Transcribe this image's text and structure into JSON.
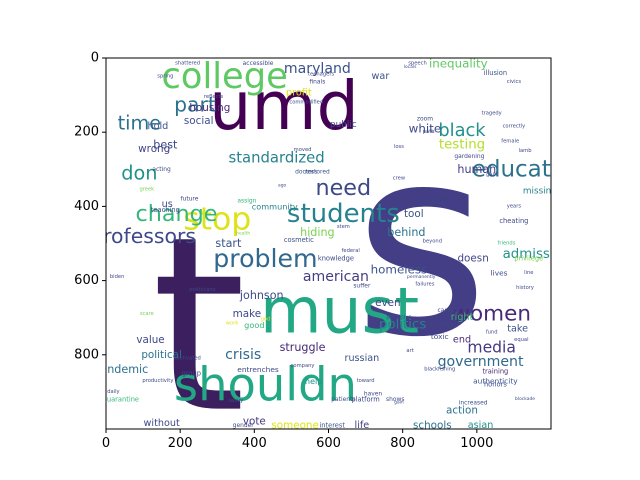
{
  "chart_data": {
    "type": "wordcloud",
    "xlim": [
      0,
      1200
    ],
    "ylim": [
      1000,
      0
    ],
    "x_ticks": [
      0,
      200,
      400,
      600,
      800,
      1000
    ],
    "y_ticks": [
      0,
      200,
      400,
      600,
      800
    ],
    "words": [
      {
        "text": "s",
        "x": 850,
        "y": 500,
        "size": 700,
        "color": "#433e85"
      },
      {
        "text": "t",
        "x": 250,
        "y": 720,
        "size": 650,
        "color": "#3b1f5e"
      },
      {
        "text": "umd",
        "x": 480,
        "y": 130,
        "size": 180,
        "color": "#440154"
      },
      {
        "text": "must",
        "x": 630,
        "y": 680,
        "size": 170,
        "color": "#22a884"
      },
      {
        "text": "shouldn",
        "x": 430,
        "y": 880,
        "size": 125,
        "color": "#22a884"
      },
      {
        "text": "college",
        "x": 320,
        "y": 50,
        "size": 95,
        "color": "#5ec962"
      },
      {
        "text": "stop",
        "x": 300,
        "y": 435,
        "size": 85,
        "color": "#dde318"
      },
      {
        "text": "students",
        "x": 640,
        "y": 420,
        "size": 70,
        "color": "#26828e"
      },
      {
        "text": "problem",
        "x": 430,
        "y": 540,
        "size": 68,
        "color": "#31688e"
      },
      {
        "text": "need",
        "x": 640,
        "y": 350,
        "size": 60,
        "color": "#3e4989"
      },
      {
        "text": "part",
        "x": 240,
        "y": 125,
        "size": 55,
        "color": "#2c728e"
      },
      {
        "text": "women",
        "x": 1040,
        "y": 690,
        "size": 58,
        "color": "#482878"
      },
      {
        "text": "education",
        "x": 1140,
        "y": 300,
        "size": 62,
        "color": "#2c728e"
      },
      {
        "text": "change",
        "x": 190,
        "y": 420,
        "size": 60,
        "color": "#35b779"
      },
      {
        "text": "professors",
        "x": 100,
        "y": 480,
        "size": 55,
        "color": "#3e4989"
      },
      {
        "text": "black",
        "x": 960,
        "y": 195,
        "size": 48,
        "color": "#21918c"
      },
      {
        "text": "time",
        "x": 90,
        "y": 175,
        "size": 52,
        "color": "#2c728e"
      },
      {
        "text": "don",
        "x": 90,
        "y": 310,
        "size": 52,
        "color": "#21918c"
      },
      {
        "text": "standardized",
        "x": 460,
        "y": 270,
        "size": 40,
        "color": "#26828e"
      },
      {
        "text": "media",
        "x": 1040,
        "y": 780,
        "size": 42,
        "color": "#443983"
      },
      {
        "text": "government",
        "x": 1010,
        "y": 820,
        "size": 38,
        "color": "#31688e"
      },
      {
        "text": "maryland",
        "x": 570,
        "y": 30,
        "size": 38,
        "color": "#3b528b"
      },
      {
        "text": "crisis",
        "x": 370,
        "y": 800,
        "size": 38,
        "color": "#31688e"
      },
      {
        "text": "american",
        "x": 620,
        "y": 590,
        "size": 38,
        "color": "#433e85"
      },
      {
        "text": "testing",
        "x": 960,
        "y": 235,
        "size": 36,
        "color": "#b5de2b"
      },
      {
        "text": "admissions",
        "x": 1170,
        "y": 530,
        "size": 36,
        "color": "#21918c"
      },
      {
        "text": "politics",
        "x": 800,
        "y": 720,
        "size": 36,
        "color": "#26828e"
      },
      {
        "text": "homeless",
        "x": 790,
        "y": 570,
        "size": 32,
        "color": "#3b528b"
      },
      {
        "text": "inequality",
        "x": 950,
        "y": 15,
        "size": 32,
        "color": "#5ec962"
      },
      {
        "text": "white",
        "x": 860,
        "y": 190,
        "size": 32,
        "color": "#3e4989"
      },
      {
        "text": "johnson",
        "x": 420,
        "y": 640,
        "size": 30,
        "color": "#3e4989"
      },
      {
        "text": "pandemic",
        "x": 40,
        "y": 840,
        "size": 30,
        "color": "#2c728e"
      },
      {
        "text": "hiding",
        "x": 570,
        "y": 470,
        "size": 30,
        "color": "#7ad151"
      },
      {
        "text": "behind",
        "x": 810,
        "y": 470,
        "size": 30,
        "color": "#2c728e"
      },
      {
        "text": "start",
        "x": 330,
        "y": 500,
        "size": 30,
        "color": "#3b528b"
      },
      {
        "text": "human",
        "x": 1000,
        "y": 300,
        "size": 30,
        "color": "#433e85"
      },
      {
        "text": "best",
        "x": 160,
        "y": 235,
        "size": 30,
        "color": "#3e4989"
      },
      {
        "text": "struggle",
        "x": 530,
        "y": 780,
        "size": 30,
        "color": "#482878"
      },
      {
        "text": "tool",
        "x": 830,
        "y": 420,
        "size": 28,
        "color": "#3b528b"
      },
      {
        "text": "social",
        "x": 250,
        "y": 170,
        "size": 28,
        "color": "#3b528b"
      },
      {
        "text": "make",
        "x": 380,
        "y": 690,
        "size": 28,
        "color": "#3e4989"
      },
      {
        "text": "even",
        "x": 760,
        "y": 660,
        "size": 28,
        "color": "#3e4989"
      },
      {
        "text": "doesn",
        "x": 990,
        "y": 540,
        "size": 28,
        "color": "#414487"
      },
      {
        "text": "action",
        "x": 960,
        "y": 950,
        "size": 28,
        "color": "#2c728e"
      },
      {
        "text": "schools",
        "x": 880,
        "y": 990,
        "size": 28,
        "color": "#2c728e"
      },
      {
        "text": "someone",
        "x": 510,
        "y": 990,
        "size": 28,
        "color": "#dde318"
      },
      {
        "text": "vote",
        "x": 400,
        "y": 980,
        "size": 28,
        "color": "#443983"
      },
      {
        "text": "political",
        "x": 150,
        "y": 800,
        "size": 28,
        "color": "#2c728e"
      },
      {
        "text": "value",
        "x": 120,
        "y": 760,
        "size": 28,
        "color": "#3e4989"
      },
      {
        "text": "housing",
        "x": 280,
        "y": 135,
        "size": 28,
        "color": "#482878"
      },
      {
        "text": "wrong",
        "x": 130,
        "y": 245,
        "size": 28,
        "color": "#414487"
      },
      {
        "text": "without",
        "x": 150,
        "y": 985,
        "size": 26,
        "color": "#3e4989"
      },
      {
        "text": "life",
        "x": 690,
        "y": 990,
        "size": 26,
        "color": "#433e85"
      },
      {
        "text": "asian",
        "x": 1010,
        "y": 990,
        "size": 26,
        "color": "#21918c"
      },
      {
        "text": "russian",
        "x": 690,
        "y": 810,
        "size": 26,
        "color": "#3b528b"
      },
      {
        "text": "right",
        "x": 960,
        "y": 700,
        "size": 26,
        "color": "#35b779"
      },
      {
        "text": "end",
        "x": 960,
        "y": 760,
        "size": 26,
        "color": "#482878"
      },
      {
        "text": "take",
        "x": 1110,
        "y": 730,
        "size": 26,
        "color": "#3b528b"
      },
      {
        "text": "missing",
        "x": 1170,
        "y": 360,
        "size": 24,
        "color": "#26828e"
      },
      {
        "text": "hold",
        "x": 140,
        "y": 185,
        "size": 26,
        "color": "#3b528b"
      },
      {
        "text": "us",
        "x": 165,
        "y": 395,
        "size": 26,
        "color": "#3e4989"
      },
      {
        "text": "profit",
        "x": 520,
        "y": 95,
        "size": 26,
        "color": "#dde318"
      },
      {
        "text": "war",
        "x": 740,
        "y": 50,
        "size": 26,
        "color": "#3b528b"
      },
      {
        "text": "public",
        "x": 640,
        "y": 180,
        "size": 24,
        "color": "#3e4989"
      },
      {
        "text": "good",
        "x": 400,
        "y": 720,
        "size": 22,
        "color": "#35b779"
      },
      {
        "text": "help",
        "x": 560,
        "y": 870,
        "size": 22,
        "color": "#21918c"
      },
      {
        "text": "community",
        "x": 455,
        "y": 400,
        "size": 22,
        "color": "#26828e"
      },
      {
        "text": "authenticity",
        "x": 1050,
        "y": 870,
        "size": 20,
        "color": "#3b528b"
      },
      {
        "text": "entrenches",
        "x": 410,
        "y": 840,
        "size": 20,
        "color": "#3e4989"
      },
      {
        "text": "lives",
        "x": 1060,
        "y": 580,
        "size": 20,
        "color": "#3e4989"
      },
      {
        "text": "privilege",
        "x": 1140,
        "y": 540,
        "size": 18,
        "color": "#7ad151"
      },
      {
        "text": "quarantine",
        "x": 40,
        "y": 920,
        "size": 18,
        "color": "#35b779"
      },
      {
        "text": "knowledge",
        "x": 620,
        "y": 540,
        "size": 18,
        "color": "#3e4989"
      },
      {
        "text": "cosmetic",
        "x": 520,
        "y": 490,
        "size": 18,
        "color": "#3b528b"
      },
      {
        "text": "teaching",
        "x": 160,
        "y": 410,
        "size": 18,
        "color": "#3e4989"
      },
      {
        "text": "group",
        "x": 230,
        "y": 850,
        "size": 18,
        "color": "#3e4989"
      },
      {
        "text": "honors",
        "x": 1050,
        "y": 880,
        "size": 18,
        "color": "#3b528b"
      },
      {
        "text": "toxic",
        "x": 900,
        "y": 750,
        "size": 20,
        "color": "#3e4989"
      },
      {
        "text": "interest",
        "x": 610,
        "y": 990,
        "size": 18,
        "color": "#3b528b"
      },
      {
        "text": "diverse",
        "x": 930,
        "y": 380,
        "size": 18,
        "color": "#433e85"
      },
      {
        "text": "radical",
        "x": 890,
        "y": 390,
        "size": 16,
        "color": "#3e4989"
      },
      {
        "text": "illusion",
        "x": 1050,
        "y": 40,
        "size": 18,
        "color": "#3b528b"
      },
      {
        "text": "zoom",
        "x": 860,
        "y": 165,
        "size": 16,
        "color": "#3e4989"
      },
      {
        "text": "gardening",
        "x": 980,
        "y": 265,
        "size": 16,
        "color": "#3e4989"
      },
      {
        "text": "training",
        "x": 1050,
        "y": 845,
        "size": 18,
        "color": "#482878"
      },
      {
        "text": "cheating",
        "x": 1100,
        "y": 440,
        "size": 18,
        "color": "#3e4989"
      },
      {
        "text": "platform",
        "x": 700,
        "y": 920,
        "size": 18,
        "color": "#3e4989"
      },
      {
        "text": "increased",
        "x": 990,
        "y": 930,
        "size": 16,
        "color": "#3b528b"
      },
      {
        "text": "gender",
        "x": 370,
        "y": 990,
        "size": 16,
        "color": "#3e4989"
      },
      {
        "text": "patients",
        "x": 640,
        "y": 920,
        "size": 16,
        "color": "#3b528b"
      },
      {
        "text": "assign",
        "x": 380,
        "y": 385,
        "size": 16,
        "color": "#35b779"
      },
      {
        "text": "future",
        "x": 225,
        "y": 380,
        "size": 16,
        "color": "#3e4989"
      },
      {
        "text": "acting",
        "x": 150,
        "y": 300,
        "size": 16,
        "color": "#3e4989"
      },
      {
        "text": "doctors",
        "x": 540,
        "y": 307,
        "size": 16,
        "color": "#3b528b"
      },
      {
        "text": "restored",
        "x": 570,
        "y": 307,
        "size": 16,
        "color": "#3b528b"
      },
      {
        "text": "shattered",
        "x": 220,
        "y": 15,
        "size": 14,
        "color": "#3e4989"
      },
      {
        "text": "accessible",
        "x": 410,
        "y": 15,
        "size": 16,
        "color": "#3e4989"
      },
      {
        "text": "finals",
        "x": 570,
        "y": 65,
        "size": 16,
        "color": "#3e4989"
      },
      {
        "text": "commodified",
        "x": 540,
        "y": 120,
        "size": 14,
        "color": "#3e4989"
      },
      {
        "text": "teenagers",
        "x": 580,
        "y": 45,
        "size": 14,
        "color": "#3e4989"
      },
      {
        "text": "speech",
        "x": 840,
        "y": 15,
        "size": 14,
        "color": "#3e4989"
      },
      {
        "text": "tragedy",
        "x": 1040,
        "y": 150,
        "size": 14,
        "color": "#3e4989"
      },
      {
        "text": "correctly",
        "x": 1100,
        "y": 185,
        "size": 14,
        "color": "#3e4989"
      },
      {
        "text": "civics",
        "x": 1100,
        "y": 65,
        "size": 14,
        "color": "#3e4989"
      },
      {
        "text": "lamb",
        "x": 1130,
        "y": 250,
        "size": 14,
        "color": "#3e4989"
      },
      {
        "text": "female",
        "x": 1090,
        "y": 225,
        "size": 14,
        "color": "#3e4989"
      },
      {
        "text": "gain",
        "x": 1040,
        "y": 315,
        "size": 14,
        "color": "#3e4989"
      },
      {
        "text": "friends",
        "x": 1080,
        "y": 500,
        "size": 14,
        "color": "#35b779"
      },
      {
        "text": "beyond",
        "x": 880,
        "y": 495,
        "size": 14,
        "color": "#3e4989"
      },
      {
        "text": "federal",
        "x": 660,
        "y": 520,
        "size": 14,
        "color": "#3e4989"
      },
      {
        "text": "suffer",
        "x": 690,
        "y": 615,
        "size": 16,
        "color": "#3e4989"
      },
      {
        "text": "failures",
        "x": 860,
        "y": 610,
        "size": 14,
        "color": "#3e4989"
      },
      {
        "text": "cancel",
        "x": 920,
        "y": 680,
        "size": 16,
        "color": "#3e4989"
      },
      {
        "text": "pervasive",
        "x": 790,
        "y": 700,
        "size": 14,
        "color": "#3e4989"
      },
      {
        "text": "fund",
        "x": 1040,
        "y": 740,
        "size": 14,
        "color": "#3e4989"
      },
      {
        "text": "equal",
        "x": 1120,
        "y": 760,
        "size": 14,
        "color": "#3e4989"
      },
      {
        "text": "shows",
        "x": 780,
        "y": 920,
        "size": 16,
        "color": "#3e4989"
      },
      {
        "text": "haven",
        "x": 720,
        "y": 905,
        "size": 16,
        "color": "#3e4989"
      },
      {
        "text": "toward",
        "x": 700,
        "y": 870,
        "size": 14,
        "color": "#3e4989"
      },
      {
        "text": "company",
        "x": 530,
        "y": 830,
        "size": 14,
        "color": "#3e4989"
      },
      {
        "text": "blackfishing",
        "x": 900,
        "y": 840,
        "size": 14,
        "color": "#3e4989"
      },
      {
        "text": "blockade",
        "x": 1130,
        "y": 920,
        "size": 12,
        "color": "#3e4989"
      },
      {
        "text": "motivated",
        "x": 220,
        "y": 810,
        "size": 14,
        "color": "#3e4989"
      },
      {
        "text": "productivity",
        "x": 140,
        "y": 870,
        "size": 14,
        "color": "#3e4989"
      },
      {
        "text": "daily",
        "x": 20,
        "y": 900,
        "size": 14,
        "color": "#3e4989"
      },
      {
        "text": "savvy",
        "x": 350,
        "y": 925,
        "size": 14,
        "color": "#3e4989"
      },
      {
        "text": "politicians",
        "x": 260,
        "y": 625,
        "size": 14,
        "color": "#3e4989"
      },
      {
        "text": "health",
        "x": 370,
        "y": 475,
        "size": 12,
        "color": "#7ad151"
      },
      {
        "text": "work",
        "x": 340,
        "y": 715,
        "size": 14,
        "color": "#dde318"
      },
      {
        "text": "god",
        "x": 430,
        "y": 705,
        "size": 14,
        "color": "#dde318"
      },
      {
        "text": "stem",
        "x": 640,
        "y": 455,
        "size": 14,
        "color": "#3e4989"
      },
      {
        "text": "crew",
        "x": 790,
        "y": 325,
        "size": 14,
        "color": "#3e4989"
      },
      {
        "text": "loss",
        "x": 790,
        "y": 240,
        "size": 14,
        "color": "#3e4989"
      },
      {
        "text": "moved",
        "x": 530,
        "y": 248,
        "size": 14,
        "color": "#3e4989"
      },
      {
        "text": "path",
        "x": 870,
        "y": 200,
        "size": 14,
        "color": "#3e4989"
      },
      {
        "text": "reflects",
        "x": 290,
        "y": 105,
        "size": 14,
        "color": "#3e4989"
      },
      {
        "text": "spring",
        "x": 160,
        "y": 50,
        "size": 14,
        "color": "#3e4989"
      },
      {
        "text": "biden",
        "x": 30,
        "y": 590,
        "size": 14,
        "color": "#3e4989"
      },
      {
        "text": "scare",
        "x": 110,
        "y": 690,
        "size": 14,
        "color": "#7ad151"
      },
      {
        "text": "greek",
        "x": 110,
        "y": 355,
        "size": 14,
        "color": "#7ad151"
      },
      {
        "text": "years",
        "x": 1100,
        "y": 400,
        "size": 14,
        "color": "#3e4989"
      },
      {
        "text": "history",
        "x": 1130,
        "y": 620,
        "size": 14,
        "color": "#3e4989"
      },
      {
        "text": "line",
        "x": 1140,
        "y": 580,
        "size": 14,
        "color": "#3e4989"
      },
      {
        "text": "permanently",
        "x": 850,
        "y": 592,
        "size": 12,
        "color": "#3e4989"
      },
      {
        "text": "ghent",
        "x": 920,
        "y": 720,
        "size": 14,
        "color": "#3e4989"
      },
      {
        "text": "art",
        "x": 820,
        "y": 790,
        "size": 14,
        "color": "#3e4989"
      },
      {
        "text": "gain",
        "x": 790,
        "y": 930,
        "size": 12,
        "color": "#3e4989"
      },
      {
        "text": "ago",
        "x": 475,
        "y": 345,
        "size": 12,
        "color": "#3e4989"
      },
      {
        "text": "locals",
        "x": 820,
        "y": 25,
        "size": 12,
        "color": "#3e4989"
      }
    ]
  }
}
